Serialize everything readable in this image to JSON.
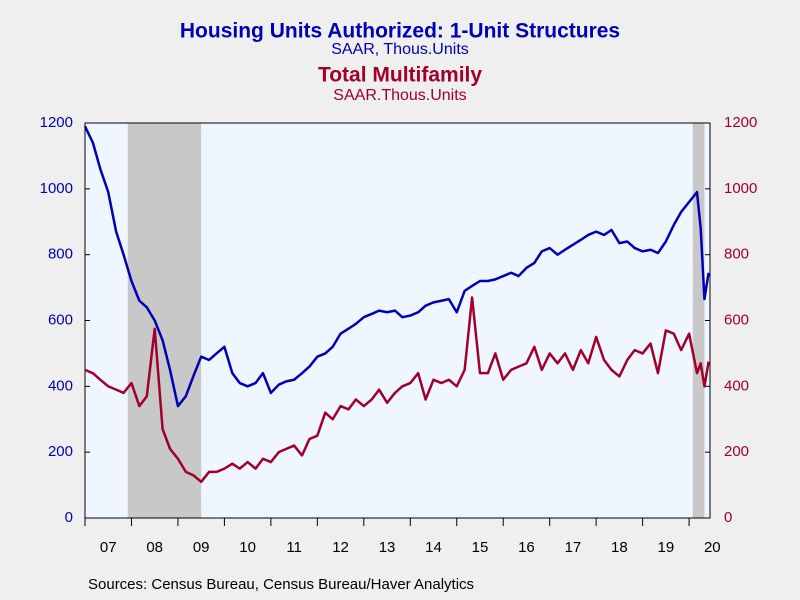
{
  "chart_data": {
    "type": "line",
    "title": "Housing Units Authorized: 1-Unit Structures",
    "subtitle": "SAAR, Thous.Units",
    "title2": "Total Multifamily",
    "subtitle2": "SAAR.Thous.Units",
    "source": "Sources:  Census Bureau, Census Bureau/Haver Analytics",
    "x": [
      2007,
      2007.17,
      2007.33,
      2007.5,
      2007.67,
      2007.83,
      2008,
      2008.17,
      2008.33,
      2008.5,
      2008.67,
      2008.83,
      2009,
      2009.17,
      2009.33,
      2009.5,
      2009.67,
      2009.83,
      2010,
      2010.17,
      2010.33,
      2010.5,
      2010.67,
      2010.83,
      2011,
      2011.17,
      2011.33,
      2011.5,
      2011.67,
      2011.83,
      2012,
      2012.17,
      2012.33,
      2012.5,
      2012.67,
      2012.83,
      2013,
      2013.17,
      2013.33,
      2013.5,
      2013.67,
      2013.83,
      2014,
      2014.17,
      2014.33,
      2014.5,
      2014.67,
      2014.83,
      2015,
      2015.17,
      2015.33,
      2015.5,
      2015.67,
      2015.83,
      2016,
      2016.17,
      2016.33,
      2016.5,
      2016.67,
      2016.83,
      2017,
      2017.17,
      2017.33,
      2017.5,
      2017.67,
      2017.83,
      2018,
      2018.17,
      2018.33,
      2018.5,
      2018.67,
      2018.83,
      2019,
      2019.17,
      2019.33,
      2019.5,
      2019.67,
      2019.83,
      2020,
      2020.17,
      2020.25,
      2020.33,
      2020.42
    ],
    "series": [
      {
        "name": "Housing Units Authorized: 1-Unit Structures",
        "color": "#0000b4",
        "axis": "y",
        "values": [
          1190,
          1140,
          1060,
          990,
          870,
          800,
          720,
          660,
          640,
          600,
          540,
          450,
          340,
          370,
          430,
          490,
          480,
          500,
          520,
          440,
          410,
          400,
          410,
          440,
          380,
          405,
          415,
          420,
          440,
          460,
          490,
          500,
          520,
          560,
          575,
          590,
          610,
          620,
          630,
          625,
          630,
          610,
          615,
          625,
          645,
          655,
          660,
          665,
          625,
          690,
          705,
          720,
          720,
          725,
          735,
          745,
          735,
          760,
          775,
          810,
          820,
          800,
          815,
          830,
          845,
          860,
          870,
          860,
          875,
          835,
          840,
          820,
          810,
          815,
          805,
          840,
          890,
          930,
          960,
          990,
          880,
          665,
          745
        ]
      },
      {
        "name": "Total Multifamily",
        "color": "#a0002a",
        "axis": "y2",
        "values": [
          450,
          440,
          420,
          400,
          390,
          380,
          410,
          340,
          370,
          575,
          270,
          210,
          180,
          140,
          130,
          110,
          140,
          140,
          150,
          165,
          150,
          170,
          150,
          180,
          170,
          200,
          210,
          220,
          190,
          240,
          250,
          320,
          300,
          340,
          330,
          360,
          340,
          360,
          390,
          350,
          380,
          400,
          410,
          440,
          360,
          420,
          410,
          420,
          400,
          450,
          670,
          440,
          440,
          500,
          420,
          450,
          460,
          470,
          520,
          450,
          500,
          470,
          500,
          450,
          510,
          470,
          550,
          480,
          450,
          430,
          480,
          510,
          500,
          530,
          440,
          570,
          560,
          510,
          560,
          440,
          470,
          400,
          475
        ]
      }
    ],
    "recessions": [
      [
        2007.92,
        2009.5
      ],
      [
        2020.08,
        2020.33
      ]
    ],
    "xlim": [
      2007,
      2020.45
    ],
    "xticks": [
      {
        "value": 2007,
        "label": "07"
      },
      {
        "value": 2008,
        "label": "08"
      },
      {
        "value": 2009,
        "label": "09"
      },
      {
        "value": 2010,
        "label": "10"
      },
      {
        "value": 2011,
        "label": "11"
      },
      {
        "value": 2012,
        "label": "12"
      },
      {
        "value": 2013,
        "label": "13"
      },
      {
        "value": 2014,
        "label": "14"
      },
      {
        "value": 2015,
        "label": "15"
      },
      {
        "value": 2016,
        "label": "16"
      },
      {
        "value": 2017,
        "label": "17"
      },
      {
        "value": 2018,
        "label": "18"
      },
      {
        "value": 2019,
        "label": "19"
      },
      {
        "value": 2020,
        "label": "20"
      }
    ],
    "ylim": [
      0,
      1200
    ],
    "yticks": [
      0,
      200,
      400,
      600,
      800,
      1000,
      1200
    ],
    "y2lim": [
      0,
      1200
    ],
    "y2ticks": [
      0,
      200,
      400,
      600,
      800,
      1000,
      1200
    ]
  }
}
